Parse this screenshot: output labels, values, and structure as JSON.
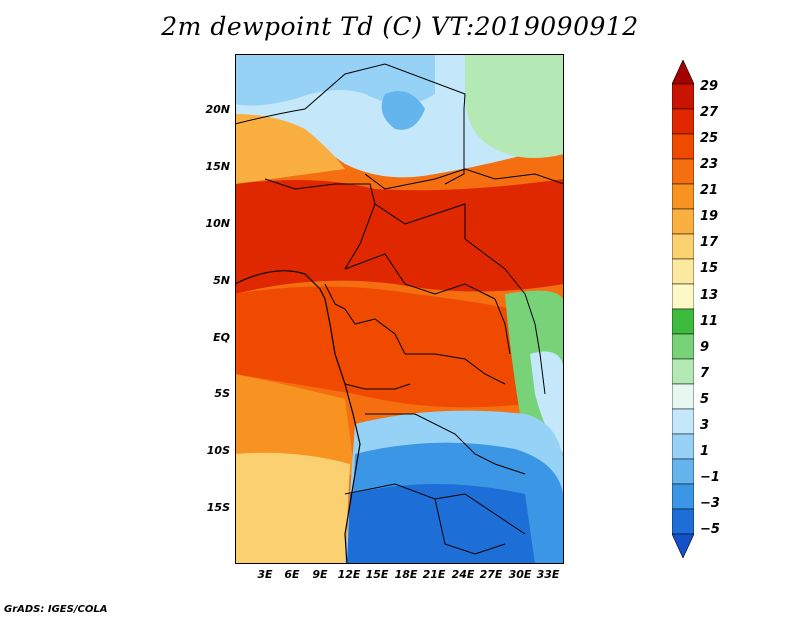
{
  "title": "2m dewpoint Td (C) VT:2019090912",
  "credit": "GrADS: IGES/COLA",
  "map": {
    "lat_labels": [
      "20N",
      "15N",
      "10N",
      "5N",
      "EQ",
      "5S",
      "10S",
      "15S"
    ],
    "lon_labels": [
      "3E",
      "6E",
      "9E",
      "12E",
      "15E",
      "18E",
      "21E",
      "24E",
      "27E",
      "30E",
      "33E"
    ]
  },
  "colorbar": {
    "labels": [
      "29",
      "27",
      "25",
      "23",
      "21",
      "19",
      "17",
      "15",
      "13",
      "11",
      "9",
      "7",
      "5",
      "3",
      "1",
      "−1",
      "−3",
      "−5"
    ],
    "colors": [
      "#a50000",
      "#c81400",
      "#e02800",
      "#f04a00",
      "#f56e10",
      "#f89220",
      "#f9b040",
      "#fad070",
      "#fbe9a0",
      "#fdf8c8",
      "#3cbb3c",
      "#78d278",
      "#b4e8b4",
      "#e6f8f0",
      "#c4e8fa",
      "#96d2f5",
      "#64b4ee",
      "#3c96e6",
      "#1e6ed8",
      "#1450c8"
    ]
  }
}
